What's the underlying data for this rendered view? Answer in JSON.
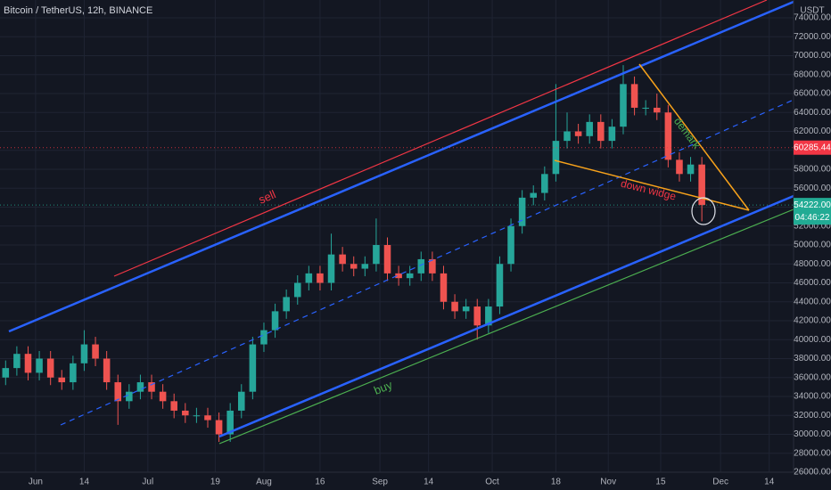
{
  "chart_data": {
    "type": "candlestick",
    "title": "Bitcoin / TetherUS, 12h, BINANCE",
    "y_unit": "USDT",
    "up_color": "#26a69a",
    "down_color": "#ef5350",
    "grid": true,
    "xlim": [
      -8.5,
      203.5
    ],
    "ylim": [
      26000,
      75882
    ],
    "xticks": [
      {
        "value": 1,
        "label": "Jun"
      },
      {
        "value": 14,
        "label": "14"
      },
      {
        "value": 31,
        "label": "Jul"
      },
      {
        "value": 49,
        "label": "19"
      },
      {
        "value": 62,
        "label": "Aug"
      },
      {
        "value": 77,
        "label": "16"
      },
      {
        "value": 93,
        "label": "Sep"
      },
      {
        "value": 106,
        "label": "14"
      },
      {
        "value": 123,
        "label": "Oct"
      },
      {
        "value": 140,
        "label": "18"
      },
      {
        "value": 154,
        "label": "Nov"
      },
      {
        "value": 168,
        "label": "15"
      },
      {
        "value": 184,
        "label": "Dec"
      },
      {
        "value": 197,
        "label": "14"
      }
    ],
    "yticks": [
      {
        "value": 26000,
        "label": "26000.00"
      },
      {
        "value": 28000,
        "label": "28000.00"
      },
      {
        "value": 30000,
        "label": "30000.00"
      },
      {
        "value": 32000,
        "label": "32000.00"
      },
      {
        "value": 34000,
        "label": "34000.00"
      },
      {
        "value": 36000,
        "label": "36000.00"
      },
      {
        "value": 38000,
        "label": "38000.00"
      },
      {
        "value": 40000,
        "label": "40000.00"
      },
      {
        "value": 42000,
        "label": "42000.00"
      },
      {
        "value": 44000,
        "label": "44000.00"
      },
      {
        "value": 46000,
        "label": "46000.00"
      },
      {
        "value": 48000,
        "label": "48000.00"
      },
      {
        "value": 50000,
        "label": "50000.00"
      },
      {
        "value": 52000,
        "label": "52000.00"
      },
      {
        "value": 54000,
        "label": "54000.00"
      },
      {
        "value": 56000,
        "label": "56000.00"
      },
      {
        "value": 58000,
        "label": "58000.00"
      },
      {
        "value": 60000,
        "label": "60000.00"
      },
      {
        "value": 62000,
        "label": "62000.00"
      },
      {
        "value": 64000,
        "label": "64000.00"
      },
      {
        "value": 66000,
        "label": "66000.00"
      },
      {
        "value": 68000,
        "label": "68000.00"
      },
      {
        "value": 70000,
        "label": "70000.00"
      },
      {
        "value": 72000,
        "label": "72000.00"
      },
      {
        "value": 74000,
        "label": "74000.00"
      }
    ],
    "x": [
      -7,
      -4,
      -1,
      2,
      5,
      8,
      11,
      14,
      17,
      20,
      23,
      26,
      29,
      32,
      35,
      38,
      41,
      44,
      47,
      50,
      53,
      56,
      59,
      62,
      65,
      68,
      71,
      74,
      77,
      80,
      83,
      86,
      89,
      92,
      95,
      98,
      101,
      104,
      107,
      110,
      113,
      116,
      119,
      122,
      125,
      128,
      131,
      134,
      137,
      140,
      143,
      146,
      149,
      152,
      155,
      158,
      161,
      164,
      167,
      170,
      173,
      176,
      179
    ],
    "open": [
      36000,
      37000,
      38500,
      36500,
      38000,
      36000,
      35500,
      37500,
      39500,
      38000,
      35500,
      33500,
      34500,
      35500,
      34500,
      33500,
      32500,
      32000,
      32000,
      31500,
      30000,
      32500,
      34500,
      39500,
      41000,
      43000,
      44500,
      46000,
      47000,
      46000,
      49000,
      48000,
      47500,
      48000,
      50000,
      47000,
      46500,
      47000,
      48500,
      47000,
      44000,
      43000,
      43500,
      41500,
      43500,
      48000,
      52000,
      55000,
      55500,
      57500,
      61000,
      62000,
      61500,
      63000,
      61000,
      62500,
      67000,
      64500,
      64500,
      64000,
      59000,
      57500,
      58500
    ],
    "high": [
      37800,
      39300,
      39300,
      38800,
      38800,
      36800,
      38300,
      41000,
      40300,
      38800,
      36300,
      35300,
      36300,
      36300,
      35300,
      34300,
      33300,
      32800,
      32800,
      32300,
      33300,
      35300,
      40300,
      41800,
      43800,
      45300,
      46800,
      47800,
      47800,
      51200,
      49800,
      48800,
      48800,
      52800,
      50800,
      47800,
      47800,
      49300,
      49300,
      47800,
      44800,
      44300,
      44300,
      44300,
      48800,
      52800,
      55800,
      56300,
      58300,
      67000,
      64000,
      62800,
      63800,
      63800,
      63300,
      69000,
      67800,
      65300,
      66000,
      64800,
      59800,
      59300,
      59300
    ],
    "low": [
      35200,
      36200,
      35700,
      35700,
      35200,
      34700,
      34700,
      36700,
      37200,
      34700,
      31000,
      32700,
      33700,
      33700,
      32700,
      31700,
      31200,
      31200,
      30700,
      29200,
      29200,
      31700,
      33700,
      38700,
      40200,
      42200,
      43700,
      45200,
      45200,
      45200,
      47200,
      46700,
      46700,
      47200,
      46200,
      45700,
      45700,
      46200,
      46200,
      43200,
      42200,
      42200,
      40000,
      40700,
      42700,
      47200,
      51200,
      54200,
      54700,
      56700,
      60200,
      60700,
      60700,
      60200,
      60200,
      61700,
      63700,
      63700,
      63200,
      58200,
      56700,
      56700,
      52500
    ],
    "close": [
      37000,
      38500,
      36500,
      38000,
      36000,
      35500,
      37500,
      39500,
      38000,
      35500,
      33500,
      34500,
      35500,
      34500,
      33500,
      32500,
      32000,
      32000,
      31500,
      30000,
      32500,
      34500,
      39500,
      41000,
      43000,
      44500,
      46000,
      47000,
      46000,
      49000,
      48000,
      47500,
      48000,
      50000,
      47000,
      46500,
      47000,
      48500,
      47000,
      44000,
      43000,
      43500,
      41500,
      43500,
      48000,
      52000,
      55000,
      55500,
      57500,
      61000,
      62000,
      61500,
      63000,
      61000,
      62500,
      67000,
      64500,
      64500,
      64000,
      59000,
      57500,
      58500,
      54222
    ],
    "price_markers": [
      {
        "value": 60285.44,
        "color": "#f23645"
      },
      {
        "value": 54222,
        "label": "54222.00",
        "color": "#22ab94"
      }
    ],
    "countdown": "04:46:22",
    "annotations": [
      "sell",
      "buy",
      "demark",
      "down widge"
    ]
  }
}
